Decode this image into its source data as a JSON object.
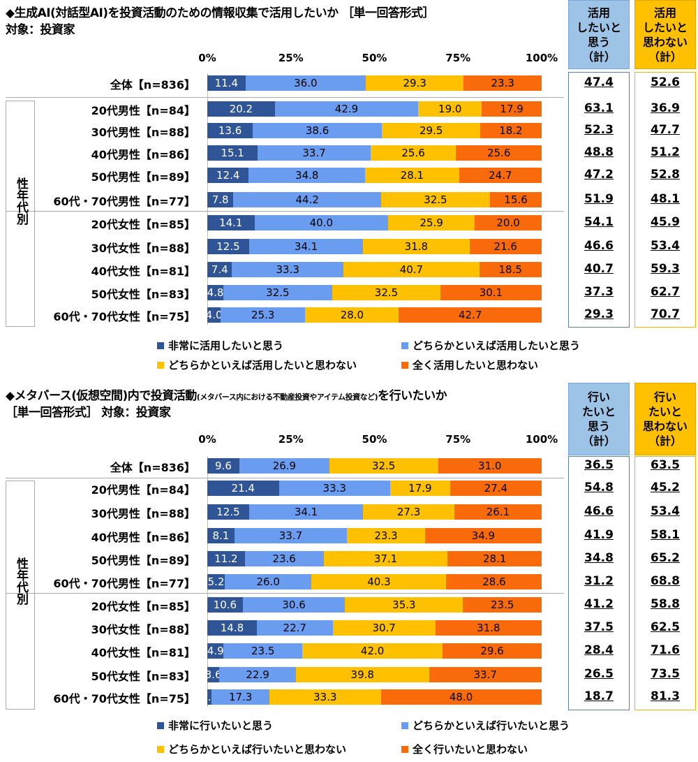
{
  "colors": {
    "very": "#2F5597",
    "somewhat": "#6A9DF0",
    "somewhat_not": "#FFC000",
    "not_at_all": "#F96A0B",
    "sum_yes_bg": "#9DC3E6",
    "sum_no_bg": "#FFC000"
  },
  "chart_data": [
    {
      "type": "bar",
      "stacked": true,
      "orientation": "horizontal",
      "title": "◆生成AI(対話型AI)を投資活動のための情報収集で活用したいか ［単一回答形式］",
      "subtitle": "対象：投資家",
      "x_ticks": [
        "0%",
        "25%",
        "50%",
        "75%",
        "100%"
      ],
      "xlim": [
        0,
        100
      ],
      "group_label": "性年代別",
      "categories": [
        "全体【n=836】",
        "20代男性【n=84】",
        "30代男性【n=88】",
        "40代男性【n=86】",
        "50代男性【n=89】",
        "60代・70代男性【n=77】",
        "20代女性【n=85】",
        "30代女性【n=88】",
        "40代女性【n=81】",
        "50代女性【n=83】",
        "60代・70代女性【n=75】"
      ],
      "series": [
        {
          "name": "非常に活用したいと思う",
          "values": [
            11.4,
            20.2,
            13.6,
            15.1,
            12.4,
            7.8,
            14.1,
            12.5,
            7.4,
            4.8,
            4.0
          ]
        },
        {
          "name": "どちらかといえば活用したいと思う",
          "values": [
            36.0,
            42.9,
            38.6,
            33.7,
            34.8,
            44.2,
            40.0,
            34.1,
            33.3,
            32.5,
            25.3
          ]
        },
        {
          "name": "どちらかといえば活用したいと思わない",
          "values": [
            29.3,
            19.0,
            29.5,
            25.6,
            28.1,
            32.5,
            25.9,
            31.8,
            40.7,
            32.5,
            28.0
          ]
        },
        {
          "name": "全く活用したいと思わない",
          "values": [
            23.3,
            17.9,
            18.2,
            25.6,
            24.7,
            15.6,
            20.0,
            21.6,
            18.5,
            30.1,
            42.7
          ]
        }
      ],
      "summary": [
        {
          "header": [
            "活用",
            "したいと",
            "思う",
            "（計）"
          ],
          "values": [
            47.4,
            63.1,
            52.3,
            48.8,
            47.2,
            51.9,
            54.1,
            46.6,
            40.7,
            37.3,
            29.3
          ]
        },
        {
          "header": [
            "活用",
            "したいと",
            "思わない",
            "（計）"
          ],
          "values": [
            52.6,
            36.9,
            47.7,
            51.2,
            52.8,
            48.1,
            45.9,
            53.4,
            59.3,
            62.7,
            70.7
          ]
        }
      ]
    },
    {
      "type": "bar",
      "stacked": true,
      "orientation": "horizontal",
      "title": "◆メタバース(仮想空間)内で投資活動",
      "title_small": "(メタバース内における不動産投資やアイテム投資など)",
      "title_end": "を行いたいか",
      "subtitle": "［単一回答形式］ 対象：投資家",
      "x_ticks": [
        "0%",
        "25%",
        "50%",
        "75%",
        "100%"
      ],
      "xlim": [
        0,
        100
      ],
      "group_label": "性年代別",
      "categories": [
        "全体【n=836】",
        "20代男性【n=84】",
        "30代男性【n=88】",
        "40代男性【n=86】",
        "50代男性【n=89】",
        "60代・70代男性【n=77】",
        "20代女性【n=85】",
        "30代女性【n=88】",
        "40代女性【n=81】",
        "50代女性【n=83】",
        "60代・70代女性【n=75】"
      ],
      "series": [
        {
          "name": "非常に行いたいと思う",
          "values": [
            9.6,
            21.4,
            12.5,
            8.1,
            11.2,
            5.2,
            10.6,
            14.8,
            4.9,
            3.6,
            1.3
          ]
        },
        {
          "name": "どちらかといえば行いたいと思う",
          "values": [
            26.9,
            33.3,
            34.1,
            33.7,
            23.6,
            26.0,
            30.6,
            22.7,
            23.5,
            22.9,
            17.3
          ]
        },
        {
          "name": "どちらかといえば行いたいと思わない",
          "values": [
            32.5,
            17.9,
            27.3,
            23.3,
            37.1,
            40.3,
            35.3,
            30.7,
            42.0,
            39.8,
            33.3
          ]
        },
        {
          "name": "全く行いたいと思わない",
          "values": [
            31.0,
            27.4,
            26.1,
            34.9,
            28.1,
            28.6,
            23.5,
            31.8,
            29.6,
            33.7,
            48.0
          ]
        }
      ],
      "summary": [
        {
          "header": [
            "行い",
            "たいと",
            "思う",
            "（計）"
          ],
          "values": [
            36.5,
            54.8,
            46.6,
            41.9,
            34.8,
            31.2,
            41.2,
            37.5,
            28.4,
            26.5,
            18.7
          ]
        },
        {
          "header": [
            "行い",
            "たいと",
            "思わない",
            "（計）"
          ],
          "values": [
            63.5,
            45.2,
            53.4,
            58.1,
            65.2,
            68.8,
            58.8,
            62.5,
            71.6,
            73.5,
            81.3
          ]
        }
      ]
    }
  ]
}
